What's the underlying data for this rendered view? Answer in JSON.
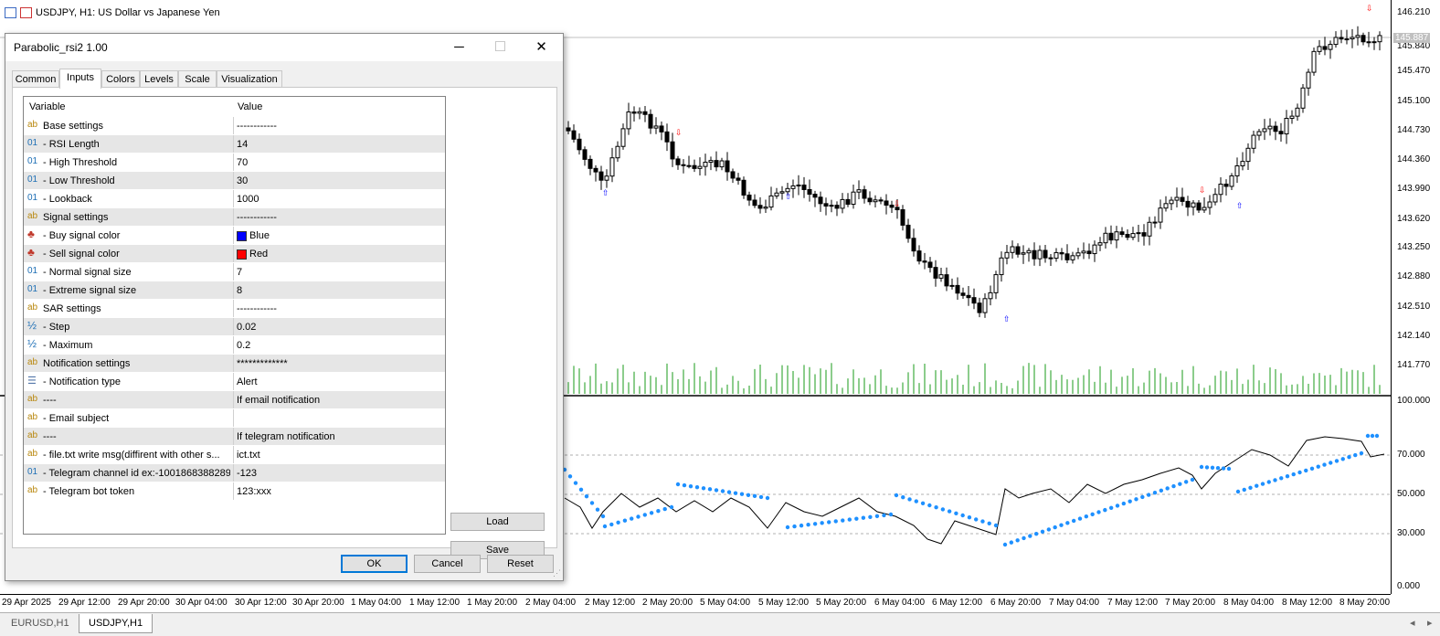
{
  "chart": {
    "title": "USDJPY, H1:  US Dollar vs Japanese Yen",
    "price_labels": [
      "146.210",
      "145.840",
      "145.470",
      "145.100",
      "144.730",
      "144.360",
      "143.990",
      "143.620",
      "143.250",
      "142.880",
      "142.510",
      "142.140",
      "141.770"
    ],
    "current_price": "145.887",
    "osc_labels": [
      "100.000",
      "70.000",
      "50.000",
      "30.000",
      "0.000"
    ],
    "time_labels": [
      "29 Apr 2025",
      "29 Apr 12:00",
      "29 Apr 20:00",
      "30 Apr 04:00",
      "30 Apr 12:00",
      "30 Apr 20:00",
      "1 May 04:00",
      "1 May 12:00",
      "1 May 20:00",
      "2 May 04:00",
      "2 May 12:00",
      "2 May 20:00",
      "5 May 04:00",
      "5 May 12:00",
      "5 May 20:00",
      "6 May 04:00",
      "6 May 12:00",
      "6 May 20:00",
      "7 May 04:00",
      "7 May 12:00",
      "7 May 20:00",
      "8 May 04:00",
      "8 May 12:00",
      "8 May 20:00"
    ],
    "oscillator_levels": [
      70,
      50,
      30
    ],
    "colors": {
      "bull_arrow": "#0000ff",
      "bear_arrow": "#ff0000",
      "volume": "#1a9b1a",
      "sar_dots": "#1e90ff",
      "rsi_line": "#000000"
    }
  },
  "bottom_tabs": [
    "EURUSD,H1",
    "USDJPY,H1"
  ],
  "dialog": {
    "title": "Parabolic_rsi2 1.00",
    "tabs": [
      "Common",
      "Inputs",
      "Colors",
      "Levels",
      "Scale",
      "Visualization"
    ],
    "active_tab": "Inputs",
    "columns": [
      "Variable",
      "Value"
    ],
    "rows": [
      {
        "icon": "ab",
        "label": "Base settings",
        "value": "------------"
      },
      {
        "icon": "01",
        "label": "- RSI Length",
        "value": "14"
      },
      {
        "icon": "01",
        "label": "- High Threshold",
        "value": "70"
      },
      {
        "icon": "01",
        "label": "- Low Threshold",
        "value": "30"
      },
      {
        "icon": "01",
        "label": "- Lookback",
        "value": "1000"
      },
      {
        "icon": "ab",
        "label": "Signal settings",
        "value": "------------"
      },
      {
        "icon": "palette",
        "label": "- Buy signal color",
        "value": "Blue",
        "swatch": "#0000ff"
      },
      {
        "icon": "palette",
        "label": "- Sell signal color",
        "value": "Red",
        "swatch": "#ff0000"
      },
      {
        "icon": "01",
        "label": "- Normal signal size",
        "value": "7"
      },
      {
        "icon": "01",
        "label": "- Extreme signal size",
        "value": "8"
      },
      {
        "icon": "ab",
        "label": "SAR settings",
        "value": "------------"
      },
      {
        "icon": "½",
        "label": "- Step",
        "value": "0.02"
      },
      {
        "icon": "½",
        "label": "- Maximum",
        "value": "0.2"
      },
      {
        "icon": "ab",
        "label": "Notification settings",
        "value": "*************"
      },
      {
        "icon": "enum",
        "label": "- Notification type",
        "value": "Alert"
      },
      {
        "icon": "ab",
        "label": "----",
        "value": "If email notification"
      },
      {
        "icon": "ab",
        "label": "- Email subject",
        "value": ""
      },
      {
        "icon": "ab",
        "label": "----",
        "value": "If telegram notification"
      },
      {
        "icon": "ab",
        "label": "- file.txt write msg(diffirent with other s...",
        "value": "ict.txt"
      },
      {
        "icon": "01",
        "label": "- Telegram channel id ex:-1001868388289",
        "value": "-123"
      },
      {
        "icon": "ab",
        "label": "- Telegram bot token",
        "value": "123:xxx"
      }
    ],
    "buttons": {
      "load": "Load",
      "save": "Save",
      "ok": "OK",
      "cancel": "Cancel",
      "reset": "Reset"
    }
  }
}
